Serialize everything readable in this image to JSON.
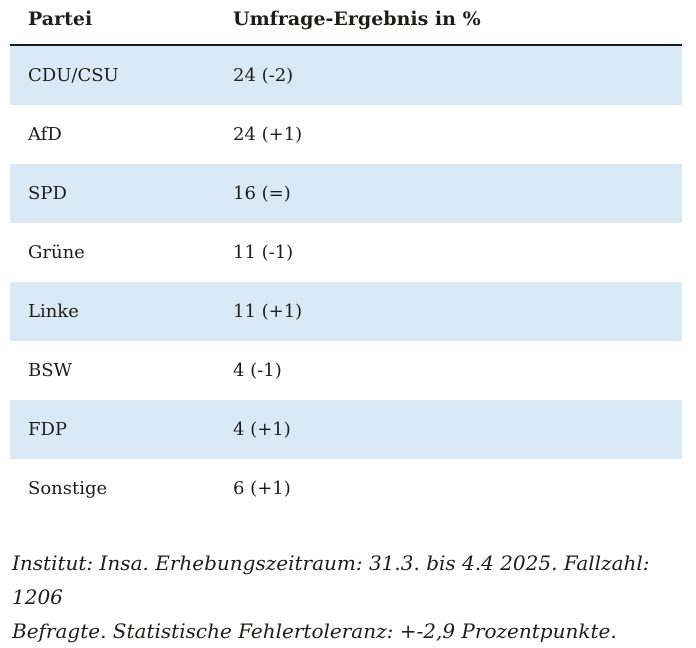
{
  "colors": {
    "row_highlight": "#d9eaf6",
    "header_rule": "#191919",
    "text": "#1d1d1b",
    "background": "#ffffff"
  },
  "table": {
    "headers": [
      "Partei",
      "Umfrage-Ergebnis in %"
    ],
    "rows": [
      {
        "party": "CDU/CSU",
        "result": "24 (-2)",
        "highlighted": true
      },
      {
        "party": "AfD",
        "result": "24 (+1)",
        "highlighted": false
      },
      {
        "party": "SPD",
        "result": "16 (=)",
        "highlighted": true
      },
      {
        "party": "Grüne",
        "result": "11 (-1)",
        "highlighted": false
      },
      {
        "party": "Linke",
        "result": "11 (+1)",
        "highlighted": true
      },
      {
        "party": "BSW",
        "result": "4 (-1)",
        "highlighted": false
      },
      {
        "party": "FDP",
        "result": "4 (+1)",
        "highlighted": true
      },
      {
        "party": "Sonstige",
        "result": "6 (+1)",
        "highlighted": false
      }
    ]
  },
  "footer": {
    "text": "Institut: Insa. Erhebungszeitraum: 31.3. bis 4.4 2025. Fallzahl: 1206 Befragte. Statistische Fehlertoleranz: +-2,9 Prozentpunkte.",
    "lines": [
      "Institut: Insa. Erhebungszeitraum: 31.3. bis 4.4 2025. Fallzahl: 1206",
      "Befragte. Statistische Fehlertoleranz: +-2,9 Prozentpunkte."
    ]
  },
  "chart_data": {
    "type": "table",
    "title": "Umfrage-Ergebnis in %",
    "columns": [
      "Partei",
      "Umfrage-Ergebnis in %"
    ],
    "categories": [
      "CDU/CSU",
      "AfD",
      "SPD",
      "Grüne",
      "Linke",
      "BSW",
      "FDP",
      "Sonstige"
    ],
    "values": [
      24,
      24,
      16,
      11,
      11,
      4,
      4,
      6
    ],
    "changes": [
      -2,
      1,
      0,
      -1,
      1,
      -1,
      1,
      1
    ],
    "change_labels": [
      "-2",
      "+1",
      "=",
      "-1",
      "+1",
      "-1",
      "+1",
      "+1"
    ],
    "annotations": "Institut: Insa. Erhebungszeitraum: 31.3. bis 4.4 2025. Fallzahl: 1206 Befragte. Statistische Fehlertoleranz: +-2,9 Prozentpunkte."
  }
}
